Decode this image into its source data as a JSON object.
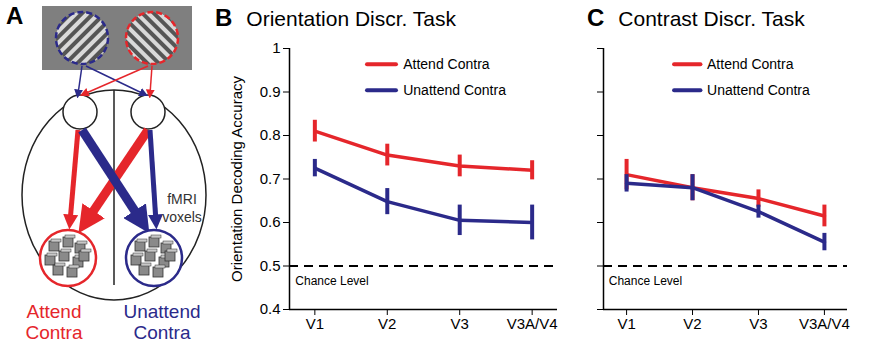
{
  "diagram": {
    "letter": "A",
    "voxels_label": "fMRI voxels",
    "attend_label": "Attend Contra",
    "unattend_label": "Unattend Contra"
  },
  "chart_data": [
    {
      "letter": "B",
      "type": "line",
      "title": "Orientation Discr. Task",
      "categories": [
        "V1",
        "V2",
        "V3",
        "V3A/V4"
      ],
      "ylabel": "Orientation Decoding Accuracy",
      "ylim": [
        0.4,
        1
      ],
      "yticks": [
        0.4,
        0.5,
        0.6,
        0.7,
        0.8,
        0.9,
        1
      ],
      "legend": "top right",
      "chance_level": 0.5,
      "chance_label": "Chance Level",
      "series": [
        {
          "name": "Attend Contra",
          "color": "#e5262b",
          "values": [
            0.81,
            0.755,
            0.73,
            0.72
          ],
          "errors": [
            0.025,
            0.025,
            0.025,
            0.022
          ]
        },
        {
          "name": "Unattend Contra",
          "color": "#2b2a8a",
          "values": [
            0.725,
            0.648,
            0.605,
            0.6
          ],
          "errors": [
            0.02,
            0.03,
            0.035,
            0.04
          ]
        }
      ]
    },
    {
      "letter": "C",
      "type": "line",
      "title": "Contrast Discr. Task",
      "categories": [
        "V1",
        "V2",
        "V3",
        "V3A/V4"
      ],
      "ylim": [
        0.4,
        1
      ],
      "yticks": [
        0.4,
        0.5,
        0.6,
        0.7,
        0.8,
        0.9,
        1
      ],
      "tick_labels": "x",
      "legend": "top right",
      "chance_level": 0.5,
      "chance_label": "Chance Level",
      "series": [
        {
          "name": "Attend Contra",
          "color": "#e5262b",
          "values": [
            0.71,
            0.68,
            0.655,
            0.615
          ],
          "errors": [
            0.035,
            0.03,
            0.02,
            0.025
          ]
        },
        {
          "name": "Unattend Contra",
          "color": "#2b2a8a",
          "values": [
            0.69,
            0.68,
            0.625,
            0.555
          ],
          "errors": [
            0.02,
            0.03,
            0.015,
            0.02
          ]
        }
      ]
    }
  ]
}
